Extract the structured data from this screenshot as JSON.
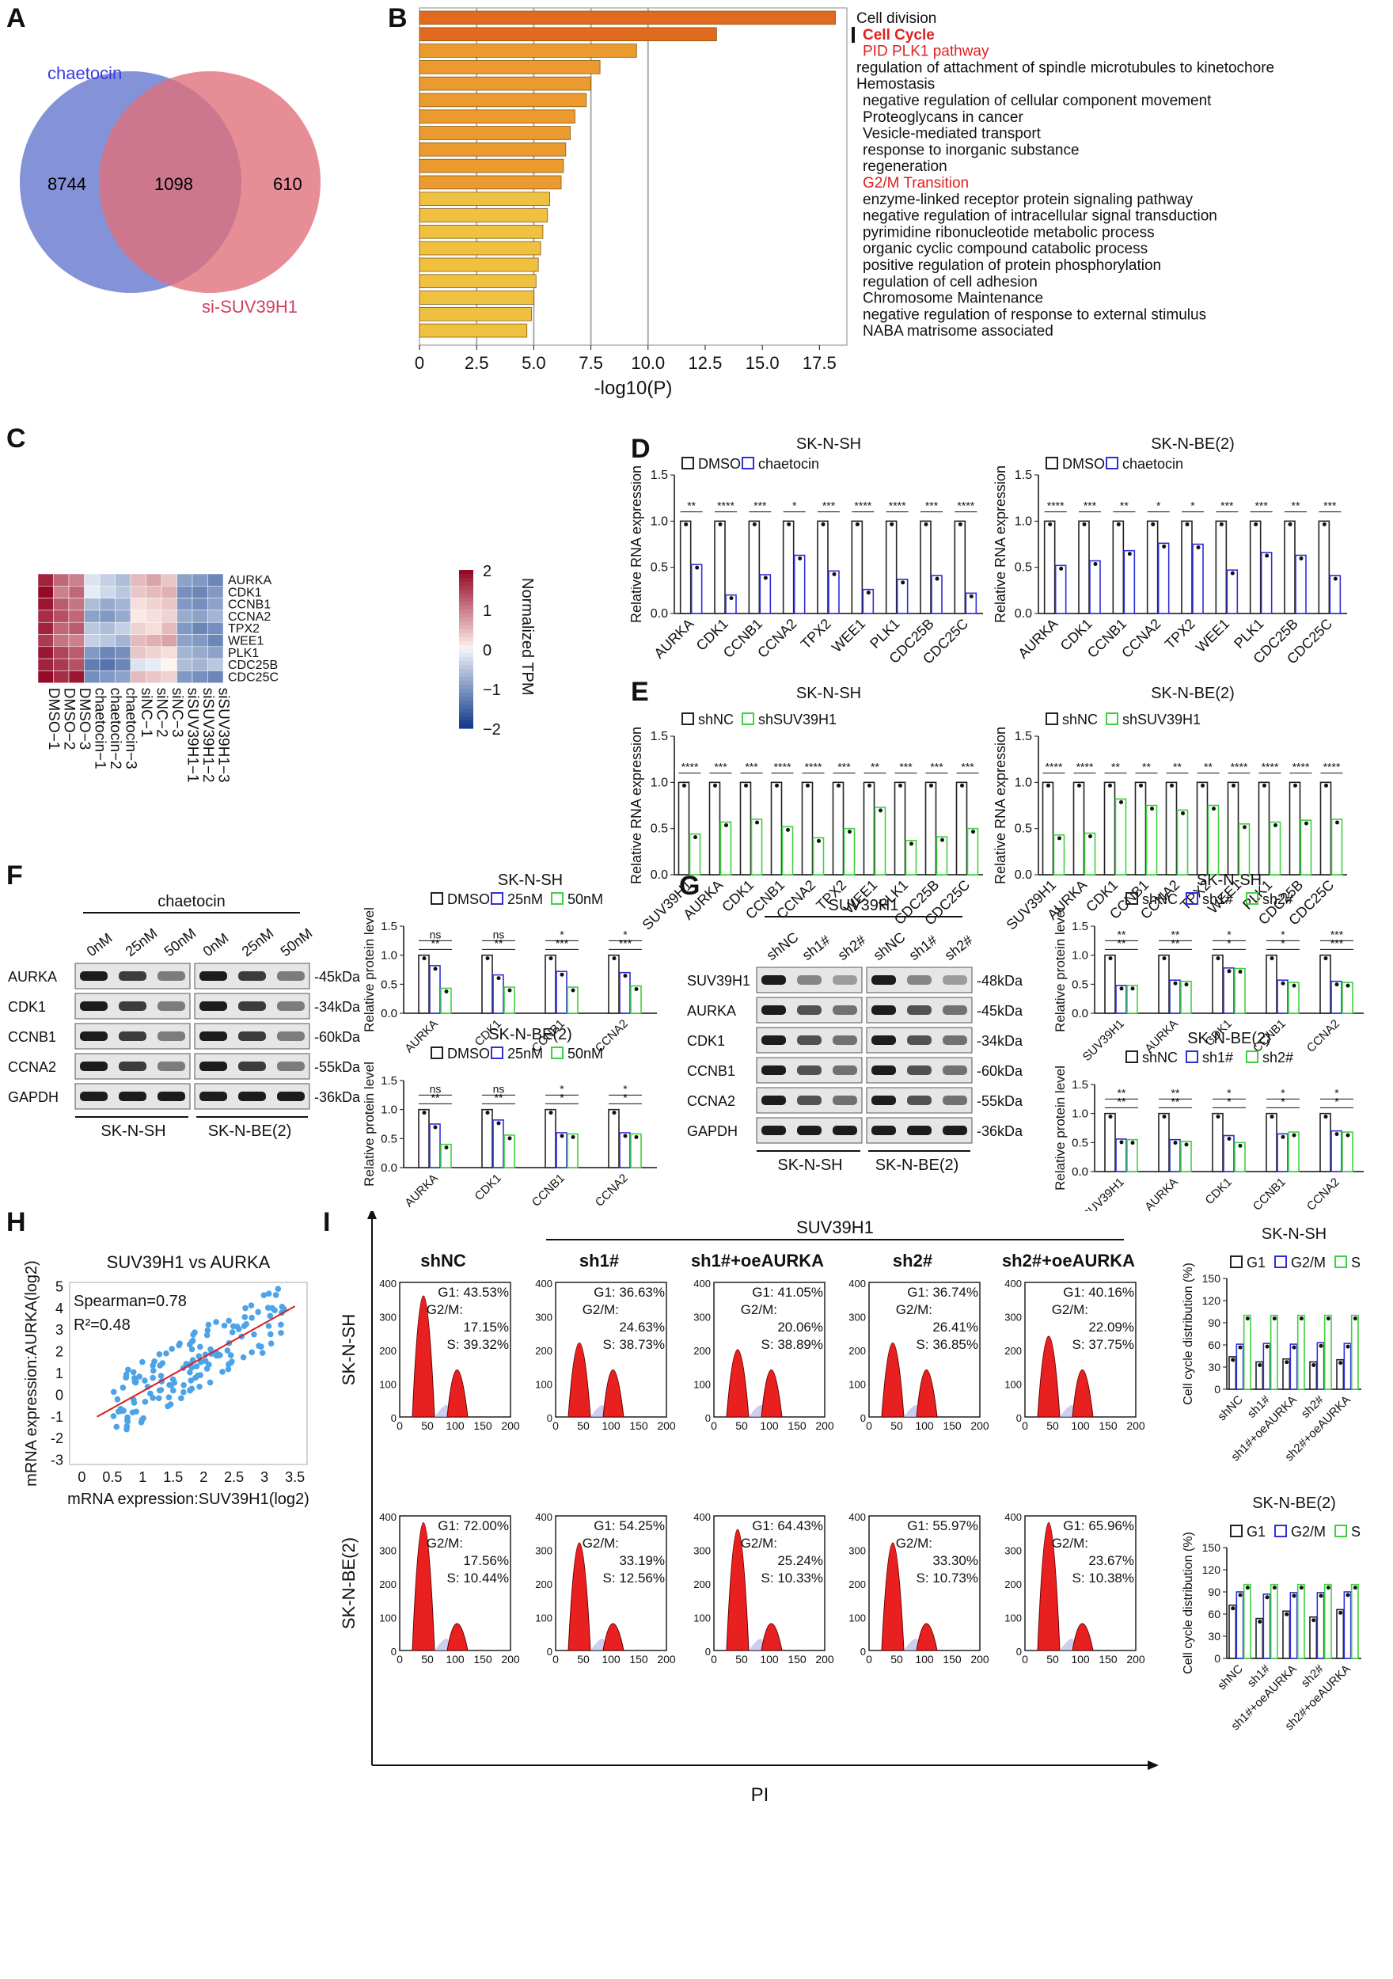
{
  "panels": {
    "A": {
      "label": "A",
      "set1": "chaetocin",
      "set2": "si-SUV39H1",
      "only1": "8744",
      "both": "1098",
      "only2": "610",
      "colors": {
        "set1": "#6f7fd0",
        "set2": "#e0707c"
      }
    },
    "B": {
      "label": "B",
      "xlabel": "-log10(P)",
      "xticks": [
        "0",
        "2.5",
        "5.0",
        "7.5",
        "10.0",
        "12.5",
        "15.0",
        "17.5"
      ],
      "terms": [
        {
          "name": "Cell division",
          "value": 18.2,
          "highlight": "none"
        },
        {
          "name": "Cell Cycle",
          "value": 13.0,
          "highlight": "red-bold"
        },
        {
          "name": "PID PLK1 pathway",
          "value": 9.5,
          "highlight": "red"
        },
        {
          "name": "regulation of attachment of spindle microtubules to kinetochore",
          "value": 7.9,
          "highlight": "none"
        },
        {
          "name": "Hemostasis",
          "value": 7.5,
          "highlight": "none"
        },
        {
          "name": "negative regulation of cellular component movement",
          "value": 7.3,
          "highlight": "none"
        },
        {
          "name": "Proteoglycans in cancer",
          "value": 6.8,
          "highlight": "none"
        },
        {
          "name": "Vesicle-mediated transport",
          "value": 6.6,
          "highlight": "none"
        },
        {
          "name": "response to inorganic substance",
          "value": 6.4,
          "highlight": "none"
        },
        {
          "name": "regeneration",
          "value": 6.3,
          "highlight": "none"
        },
        {
          "name": "G2/M Transition",
          "value": 6.2,
          "highlight": "red"
        },
        {
          "name": "enzyme-linked receptor protein signaling pathway",
          "value": 5.7,
          "highlight": "none"
        },
        {
          "name": "negative regulation of intracellular signal transduction",
          "value": 5.6,
          "highlight": "none"
        },
        {
          "name": "pyrimidine ribonucleotide metabolic process",
          "value": 5.4,
          "highlight": "none"
        },
        {
          "name": "organic cyclic compound catabolic process",
          "value": 5.3,
          "highlight": "none"
        },
        {
          "name": "positive regulation of protein phosphorylation",
          "value": 5.2,
          "highlight": "none"
        },
        {
          "name": "regulation of cell adhesion",
          "value": 5.1,
          "highlight": "none"
        },
        {
          "name": "Chromosome Maintenance",
          "value": 5.0,
          "highlight": "none"
        },
        {
          "name": "negative regulation of response to external stimulus",
          "value": 4.9,
          "highlight": "none"
        },
        {
          "name": "NABA matrisome associated",
          "value": 4.7,
          "highlight": "none"
        }
      ]
    },
    "C": {
      "label": "C",
      "genes": [
        "AURKA",
        "CDK1",
        "CCNB1",
        "CCNA2",
        "TPX2",
        "WEE1",
        "PLK1",
        "CDC25B",
        "CDC25C"
      ],
      "samples": [
        "DMSO−1",
        "DMSO−2",
        "DMSO−3",
        "chaetocin−1",
        "chaetocin−2",
        "chaetocin−3",
        "siNC−1",
        "siNC−2",
        "siNC−3",
        "siSUV39H1−1",
        "siSUV39H1−2",
        "siSUV39H1−3"
      ],
      "legend_title": "Normalized TPM",
      "legend_ticks": [
        "2",
        "1",
        "0",
        "−1",
        "−2"
      ],
      "values": [
        [
          1.8,
          1.2,
          1.0,
          -0.2,
          -0.4,
          -0.6,
          0.5,
          0.7,
          0.4,
          -0.9,
          -1.0,
          -1.2
        ],
        [
          2.0,
          1.0,
          1.2,
          -0.1,
          -0.3,
          -0.5,
          0.4,
          0.5,
          0.6,
          -1.1,
          -1.2,
          -1.0
        ],
        [
          1.9,
          1.3,
          1.1,
          -0.6,
          -0.8,
          -0.7,
          0.2,
          0.3,
          0.4,
          -1.0,
          -1.1,
          -0.9
        ],
        [
          1.7,
          1.4,
          1.2,
          -0.9,
          -1.0,
          -0.8,
          0.1,
          0.2,
          0.3,
          -0.8,
          -0.9,
          -0.7
        ],
        [
          1.8,
          1.2,
          1.3,
          -0.5,
          -0.6,
          -0.4,
          0.3,
          0.2,
          0.5,
          -1.0,
          -1.2,
          -1.1
        ],
        [
          1.6,
          1.1,
          1.0,
          -0.4,
          -0.5,
          -0.7,
          0.5,
          0.6,
          0.7,
          -0.9,
          -1.0,
          -1.2
        ],
        [
          1.9,
          1.5,
          1.3,
          -1.0,
          -1.2,
          -1.1,
          0.4,
          0.3,
          0.2,
          -0.7,
          -0.8,
          -0.9
        ],
        [
          1.8,
          1.6,
          1.4,
          -1.3,
          -1.4,
          -1.2,
          -0.2,
          -0.1,
          0.0,
          -0.6,
          -0.7,
          -0.5
        ],
        [
          2.0,
          1.7,
          1.9,
          -1.1,
          -1.0,
          -0.9,
          0.5,
          0.4,
          0.3,
          -1.0,
          -1.1,
          -1.2
        ]
      ]
    },
    "D": {
      "label": "D",
      "ylabel": "Relative RNA expression",
      "legend": [
        "DMSO",
        "chaetocin"
      ],
      "colors": [
        "#222222",
        "#2f2fd8"
      ],
      "yticks": [
        "0.0",
        "0.5",
        "1.0",
        "1.5"
      ],
      "genes": [
        "AURKA",
        "CDK1",
        "CCNB1",
        "CCNA2",
        "TPX2",
        "WEE1",
        "PLK1",
        "CDC25B",
        "CDC25C"
      ],
      "charts": [
        {
          "title": "SK-N-SH",
          "ctrl": [
            1,
            1,
            1,
            1,
            1,
            1,
            1,
            1,
            1
          ],
          "treat": [
            0.53,
            0.2,
            0.42,
            0.63,
            0.46,
            0.26,
            0.37,
            0.41,
            0.22
          ],
          "sig": [
            "**",
            "****",
            "***",
            "*",
            "***",
            "****",
            "****",
            "***",
            "****"
          ]
        },
        {
          "title": "SK-N-BE(2)",
          "ctrl": [
            1,
            1,
            1,
            1,
            1,
            1,
            1,
            1,
            1
          ],
          "treat": [
            0.52,
            0.57,
            0.68,
            0.76,
            0.75,
            0.47,
            0.66,
            0.63,
            0.41
          ],
          "sig": [
            "****",
            "***",
            "**",
            "*",
            "*",
            "***",
            "***",
            "**",
            "***"
          ]
        }
      ]
    },
    "E": {
      "label": "E",
      "ylabel": "Relative RNA expression",
      "legend": [
        "shNC",
        "shSUV39H1"
      ],
      "colors": [
        "#222222",
        "#3fd03f"
      ],
      "yticks": [
        "0.0",
        "0.5",
        "1.0",
        "1.5"
      ],
      "genes": [
        "SUV39H1",
        "AURKA",
        "CDK1",
        "CCNB1",
        "CCNA2",
        "TPX2",
        "WEE1",
        "PLK1",
        "CDC25B",
        "CDC25C"
      ],
      "charts": [
        {
          "title": "SK-N-SH",
          "ctrl": [
            1,
            1,
            1,
            1,
            1,
            1,
            1,
            1,
            1,
            1
          ],
          "treat": [
            0.44,
            0.57,
            0.6,
            0.52,
            0.4,
            0.5,
            0.73,
            0.37,
            0.41,
            0.5
          ],
          "sig": [
            "****",
            "***",
            "***",
            "****",
            "****",
            "***",
            "**",
            "***",
            "***",
            "***"
          ]
        },
        {
          "title": "SK-N-BE(2)",
          "ctrl": [
            1,
            1,
            1,
            1,
            1,
            1,
            1,
            1,
            1,
            1
          ],
          "treat": [
            0.43,
            0.45,
            0.82,
            0.75,
            0.7,
            0.75,
            0.55,
            0.57,
            0.59,
            0.6
          ],
          "sig": [
            "****",
            "****",
            "**",
            "**",
            "**",
            "**",
            "****",
            "****",
            "****",
            "****"
          ]
        }
      ]
    },
    "F": {
      "label": "F",
      "blot_title": "chaetocin",
      "lanes": [
        "0nM",
        "25nM",
        "50nM",
        "0nM",
        "25nM",
        "50nM"
      ],
      "proteins": [
        "AURKA",
        "CDK1",
        "CCNB1",
        "CCNA2",
        "GAPDH"
      ],
      "sizes": [
        "-45kDa",
        "-34kDa",
        "-60kDa",
        "-55kDa",
        "-36kDa"
      ],
      "cells": [
        "SK-N-SH",
        "SK-N-BE(2)"
      ],
      "ylabel": "Relative protein level",
      "legend": [
        "DMSO",
        "25nM",
        "50nM"
      ],
      "colors": [
        "#222222",
        "#2f2fd8",
        "#3fd03f"
      ],
      "yticks": [
        "0.0",
        "0.5",
        "1.0",
        "1.5"
      ],
      "genes": [
        "AURKA",
        "CDK1",
        "CCNB1",
        "CCNA2"
      ],
      "charts": [
        {
          "title": "SK-N-SH",
          "groups": [
            [
              1.0,
              0.82,
              0.43
            ],
            [
              1.0,
              0.66,
              0.45
            ],
            [
              1.0,
              0.72,
              0.45
            ],
            [
              1.0,
              0.7,
              0.47
            ]
          ],
          "sig_top": [
            "**",
            "**",
            "***",
            "***"
          ],
          "sig_bot": [
            "ns",
            "ns",
            "*",
            "*"
          ]
        },
        {
          "title": "SK-N-BE(2)",
          "groups": [
            [
              1.0,
              0.75,
              0.4
            ],
            [
              1.0,
              0.82,
              0.56
            ],
            [
              1.0,
              0.6,
              0.58
            ],
            [
              1.0,
              0.6,
              0.58
            ]
          ],
          "sig_top": [
            "**",
            "**",
            "*",
            "*"
          ],
          "sig_bot": [
            "ns",
            "ns",
            "*",
            "*"
          ]
        }
      ]
    },
    "G": {
      "label": "G",
      "blot_title": "SUV39H1",
      "lanes": [
        "shNC",
        "sh1#",
        "sh2#",
        "shNC",
        "sh1#",
        "sh2#"
      ],
      "proteins": [
        "SUV39H1",
        "AURKA",
        "CDK1",
        "CCNB1",
        "CCNA2",
        "GAPDH"
      ],
      "sizes": [
        "-48kDa",
        "-45kDa",
        "-34kDa",
        "-60kDa",
        "-55kDa",
        "-36kDa"
      ],
      "cells": [
        "SK-N-SH",
        "SK-N-BE(2)"
      ],
      "ylabel": "Relative protein level",
      "legend": [
        "shNC",
        "sh1#",
        "sh2#"
      ],
      "colors": [
        "#222222",
        "#2f2fd8",
        "#3fd03f"
      ],
      "yticks": [
        "0.0",
        "0.5",
        "1.0",
        "1.5"
      ],
      "genes": [
        "SUV39H1",
        "AURKA",
        "CDK1",
        "CCNB1",
        "CCNA2"
      ],
      "charts": [
        {
          "title": "SK-N-SH",
          "groups": [
            [
              1.0,
              0.48,
              0.48
            ],
            [
              1.0,
              0.57,
              0.55
            ],
            [
              1.0,
              0.78,
              0.77
            ],
            [
              1.0,
              0.57,
              0.53
            ],
            [
              1.0,
              0.55,
              0.53
            ]
          ],
          "sig_top": [
            "**",
            "**",
            "*",
            "*",
            "***"
          ],
          "sig_bot": [
            "**",
            "**",
            "*",
            "*",
            "***"
          ]
        },
        {
          "title": "SK-N-BE(2)",
          "groups": [
            [
              1.0,
              0.56,
              0.55
            ],
            [
              1.0,
              0.55,
              0.52
            ],
            [
              1.0,
              0.62,
              0.5
            ],
            [
              1.0,
              0.65,
              0.68
            ],
            [
              1.0,
              0.7,
              0.68
            ]
          ],
          "sig_top": [
            "**",
            "**",
            "*",
            "*",
            "*"
          ],
          "sig_bot": [
            "**",
            "**",
            "*",
            "*",
            "*"
          ]
        }
      ]
    },
    "H": {
      "label": "H",
      "title": "SUV39H1 vs AURKA",
      "stat1": "Spearman=0.78",
      "stat2": "R²=0.48",
      "xlabel": "mRNA expression:SUV39H1(log2)",
      "ylabel": "mRNA expression:AURKA(log2)",
      "xticks": [
        "0",
        "0.5",
        "1",
        "1.5",
        "2",
        "2.5",
        "3",
        "3.5"
      ],
      "yticks": [
        "-3",
        "-2",
        "-1",
        "0",
        "1",
        "2",
        "3",
        "4",
        "5"
      ],
      "point_color": "#4da3e8",
      "line_color": "#d62020",
      "line": {
        "x1": 0.25,
        "y1": -1.0,
        "x2": 3.5,
        "y2": 4.1
      }
    },
    "I": {
      "label": "I",
      "group_title": "SUV39H1",
      "xlabel": "PI",
      "rows": [
        "SK-N-SH",
        "SK-N-BE(2)"
      ],
      "cols": [
        "shNC",
        "sh1#",
        "sh1#+oeAURKA",
        "sh2#",
        "sh2#+oeAURKA"
      ],
      "xticks": [
        "0",
        "50",
        "100",
        "150",
        "200"
      ],
      "stats": [
        [
          [
            "G1: 43.53%",
            "G2/M:",
            "17.15%",
            "S: 39.32%"
          ],
          [
            "G1: 36.63%",
            "G2/M:",
            "24.63%",
            "S: 38.73%"
          ],
          [
            "G1: 41.05%",
            "G2/M:",
            "20.06%",
            "S: 38.89%"
          ],
          [
            "G1: 36.74%",
            "G2/M:",
            "26.41%",
            "S: 36.85%"
          ],
          [
            "G1: 40.16%",
            "G2/M:",
            "22.09%",
            "S: 37.75%"
          ]
        ],
        [
          [
            "G1: 72.00%",
            "G2/M:",
            "17.56%",
            "S: 10.44%"
          ],
          [
            "G1: 54.25%",
            "G2/M:",
            "33.19%",
            "S: 12.56%"
          ],
          [
            "G1: 64.43%",
            "G2/M:",
            "25.24%",
            "S: 10.33%"
          ],
          [
            "G1: 55.97%",
            "G2/M:",
            "33.30%",
            "S: 10.73%"
          ],
          [
            "G1: 65.96%",
            "G2/M:",
            "23.67%",
            "S: 10.38%"
          ]
        ]
      ],
      "ymax": [
        [
          "400",
          "300",
          "200",
          "100",
          "0"
        ],
        [
          "400",
          "300",
          "200",
          "100",
          "0"
        ]
      ],
      "dist": {
        "ylabel": "Cell cycle distribution (%)",
        "legend": [
          "G1",
          "G2/M",
          "S"
        ],
        "colors": [
          "#222222",
          "#2f2fd8",
          "#3fd03f"
        ],
        "yticks": [
          "0",
          "30",
          "60",
          "90",
          "120",
          "150"
        ],
        "xcats": [
          "shNC",
          "sh1#",
          "sh1#+oeAURKA",
          "sh2#",
          "sh2#+oeAURKA"
        ],
        "charts": [
          {
            "title": "SK-N-SH",
            "G1": [
              44,
              37,
              41,
              37,
              40
            ],
            "G2M": [
              61,
              62,
              61,
              63,
              62
            ],
            "S": [
              100,
              100,
              100,
              100,
              100
            ]
          },
          {
            "title": "SK-N-BE(2)",
            "G1": [
              72,
              54,
              64,
              56,
              66
            ],
            "G2M": [
              90,
              87,
              89,
              89,
              90
            ],
            "S": [
              100,
              100,
              100,
              100,
              100
            ]
          }
        ]
      }
    }
  }
}
